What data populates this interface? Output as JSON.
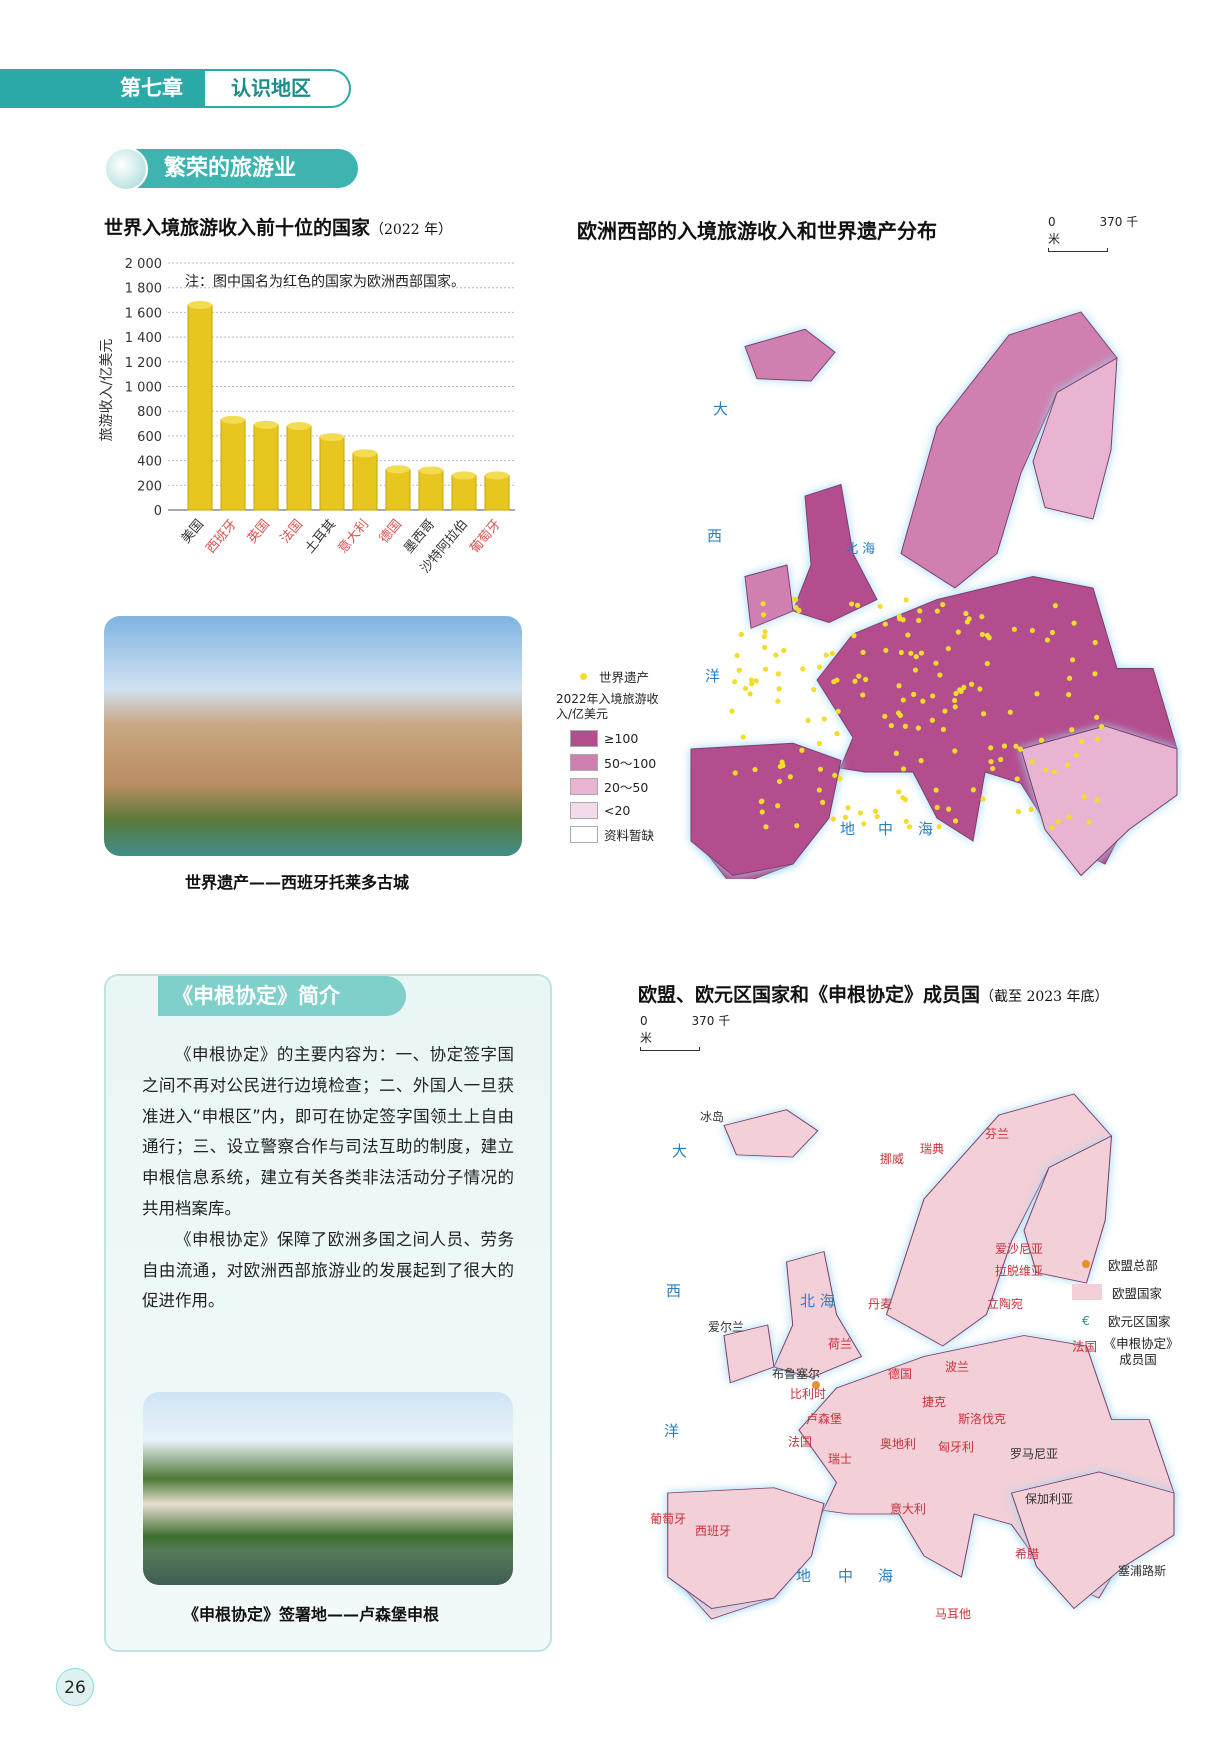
{
  "header": {
    "chapter": "第七章",
    "chapter_title": "认识地区",
    "section": "繁荣的旅游业"
  },
  "chart1": {
    "title": "世界入境旅游收入前十位的国家",
    "title_year": "（2022 年）",
    "note": "注：图中国名为红色的国家为欧洲西部国家。"
  },
  "chart_data": {
    "type": "bar",
    "title": "世界入境旅游收入前十位的国家（2022 年）",
    "xlabel": "",
    "ylabel": "旅游收入/亿美元",
    "ylim": [
      0,
      2000
    ],
    "yticks": [
      "0",
      "200",
      "400",
      "600",
      "800",
      "1 000",
      "1 200",
      "1 400",
      "1 600",
      "1 800",
      "2 000"
    ],
    "categories": [
      "美国",
      "西班牙",
      "英国",
      "法国",
      "土耳其",
      "意大利",
      "德国",
      "墨西哥",
      "沙特阿拉伯",
      "葡萄牙"
    ],
    "values": [
      1660,
      730,
      690,
      680,
      590,
      460,
      330,
      320,
      280,
      280
    ],
    "west_europe": [
      false,
      true,
      true,
      true,
      false,
      true,
      true,
      false,
      false,
      true
    ],
    "colors": {
      "bar": "#e8c620",
      "label_west": "#d9534f",
      "label_other": "#333333"
    },
    "grid": true
  },
  "photo1": {
    "caption": "世界遗产——西班牙托莱多古城"
  },
  "map1": {
    "title": "欧洲西部的入境旅游收入和世界遗产分布",
    "scale": [
      "0",
      "370 千米"
    ],
    "labels": [
      "大",
      "西",
      "洋",
      "北 海",
      "地",
      "中",
      "海"
    ],
    "legend": {
      "heritage": "世界遗产",
      "head": "2022年入境旅游收入/亿美元",
      "items": [
        {
          "label": "≥100",
          "color": "#b44d8e"
        },
        {
          "label": "50～100",
          "color": "#cf80b0"
        },
        {
          "label": "20～50",
          "color": "#e8b4d2"
        },
        {
          "label": "<20",
          "color": "#f4dbe9"
        },
        {
          "label": "资料暂缺",
          "color": "#ffffff"
        }
      ]
    }
  },
  "schengen": {
    "title": "《申根协定》简介",
    "p1": "《申根协定》的主要内容为：一、协定签字国之间不再对公民进行边境检查；二、外国人一旦获准进入“申根区”内，即可在协定签字国领土上自由通行；三、设立警察合作与司法互助的制度，建立申根信息系统，建立有关各类非法活动分子情况的共用档案库。",
    "p2": "《申根协定》保障了欧洲多国之间人员、劳务自由流通，对欧洲西部旅游业的发展起到了很大的促进作用。",
    "photo_caption": "《申根协定》签署地——卢森堡申根"
  },
  "map2": {
    "title": "欧盟、欧元区国家和《申根协定》成员国",
    "title_note": "（截至 2023 年底）",
    "scale": [
      "0",
      "370 千米"
    ],
    "sea_labels": [
      "大",
      "西",
      "洋",
      "北 海",
      "地",
      "中",
      "海"
    ],
    "countries": [
      "冰岛",
      "爱尔兰",
      "挪威",
      "瑞典",
      "芬兰",
      "丹麦",
      "爱沙尼亚",
      "拉脱维亚",
      "立陶宛",
      "荷兰",
      "比利时",
      "卢森堡",
      "德国",
      "波兰",
      "捷克",
      "斯洛伐克",
      "奥地利",
      "匈牙利",
      "瑞士",
      "法国",
      "意大利",
      "西班牙",
      "葡萄牙",
      "罗马尼亚",
      "保加利亚",
      "希腊",
      "马耳他",
      "塞浦路斯",
      "布鲁塞尔"
    ],
    "legend": {
      "hq": "欧盟总部",
      "eu": "欧盟国家",
      "euro": "欧元区国家",
      "schengen_sample": "法国",
      "schengen": "《申根协定》成员国"
    },
    "colors": {
      "eu": "#f3cfd8",
      "hq": "#e8902a",
      "euro": "#1a9a8a",
      "schengen": "#d0302f"
    }
  },
  "page_number": "26"
}
